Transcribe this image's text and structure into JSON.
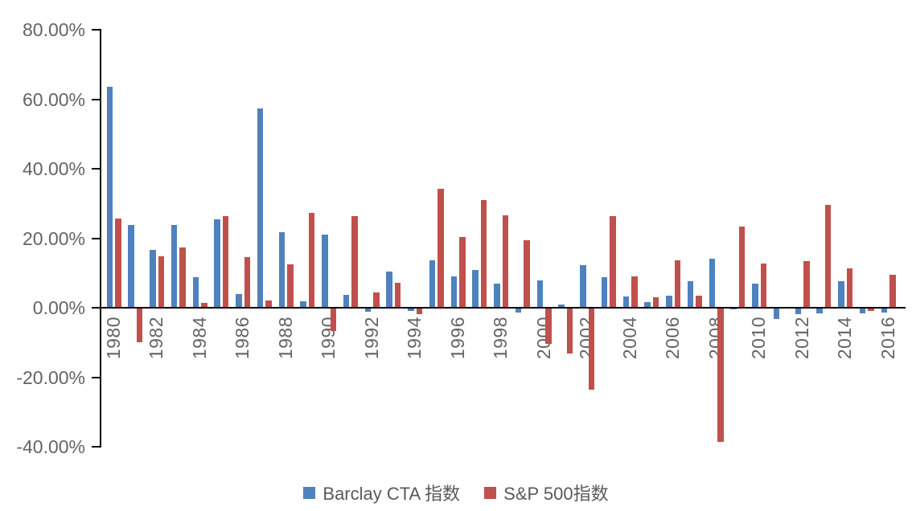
{
  "chart_data": {
    "type": "bar",
    "title": "",
    "xlabel": "",
    "ylabel": "",
    "categories": [
      "1980",
      "1981",
      "1982",
      "1983",
      "1984",
      "1985",
      "1986",
      "1987",
      "1988",
      "1989",
      "1990",
      "1991",
      "1992",
      "1993",
      "1994",
      "1995",
      "1996",
      "1997",
      "1998",
      "1999",
      "2000",
      "2001",
      "2002",
      "2003",
      "2004",
      "2005",
      "2006",
      "2007",
      "2008",
      "2009",
      "2010",
      "2011",
      "2012",
      "2013",
      "2014",
      "2015",
      "2016"
    ],
    "series": [
      {
        "name": "Barclay CTA 指数",
        "color": "#4F81BD",
        "values": [
          63.69,
          23.9,
          16.68,
          23.75,
          8.74,
          25.5,
          3.82,
          57.27,
          21.76,
          1.8,
          21.02,
          3.73,
          -0.91,
          10.37,
          -0.65,
          13.64,
          9.12,
          10.89,
          7.01,
          -1.19,
          7.86,
          0.84,
          12.36,
          8.69,
          3.3,
          1.71,
          3.54,
          7.64,
          14.09,
          -0.1,
          7.05,
          -3.09,
          -1.7,
          -1.42,
          7.61,
          -1.5,
          -1.23
        ]
      },
      {
        "name": "S&P 500指数",
        "color": "#C0504D",
        "values": [
          25.77,
          -9.73,
          14.76,
          17.27,
          1.4,
          26.33,
          14.62,
          2.03,
          12.4,
          27.25,
          -6.56,
          26.31,
          4.46,
          7.06,
          -1.54,
          34.11,
          20.26,
          31.01,
          26.67,
          19.53,
          -10.14,
          -13.04,
          -23.37,
          26.38,
          8.99,
          3.0,
          13.62,
          3.53,
          -38.49,
          23.45,
          12.78,
          0.0,
          13.41,
          29.6,
          11.39,
          -0.73,
          9.54
        ]
      }
    ],
    "y_tick_labels": [
      "80.00%",
      "60.00%",
      "40.00%",
      "20.00%",
      "0.00%",
      "-20.00%",
      "-40.00%"
    ],
    "ylim": [
      -40,
      80
    ],
    "y_tick_step": 20,
    "x_label_every": 2,
    "grid": false,
    "legend_position": "bottom",
    "axis_color": "#000000",
    "tick_label_color": "#646464",
    "background_color": "#FFFFFF"
  }
}
